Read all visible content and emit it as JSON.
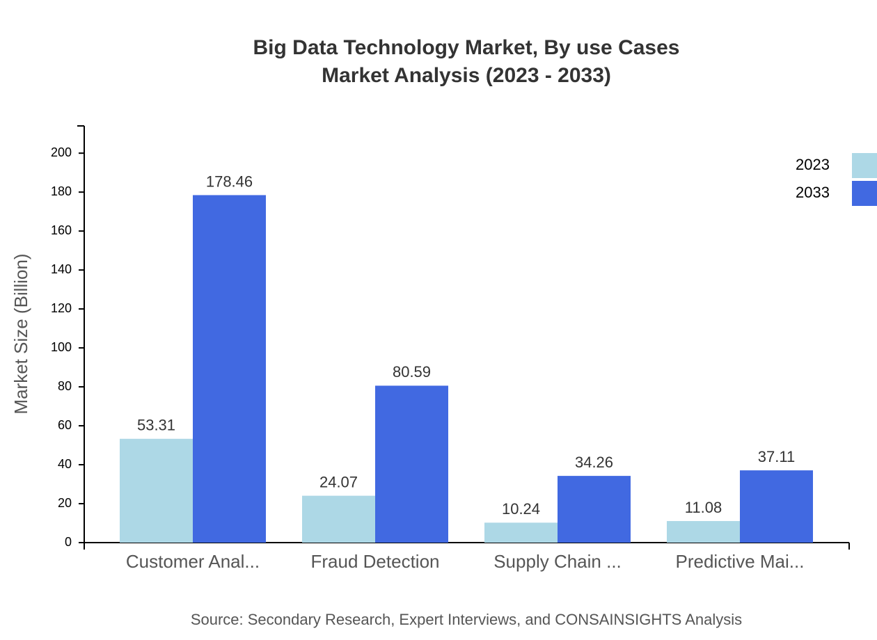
{
  "chart_data": {
    "type": "bar",
    "title": "Big Data Technology Market, By use Cases",
    "subtitle": "Market Analysis (2023 - 2033)",
    "y_label": "Market Size (Billion)",
    "source": "Source: Secondary Research, Expert Interviews, and CONSAINSIGHTS Analysis",
    "categories": [
      "Customer Anal...",
      "Fraud Detection",
      "Supply Chain ...",
      "Predictive Mai..."
    ],
    "series": [
      {
        "name": "2023",
        "color": "#add8e6",
        "values": [
          53.31,
          24.07,
          10.24,
          11.08
        ]
      },
      {
        "name": "2033",
        "color": "#4169e1",
        "values": [
          178.46,
          80.59,
          34.26,
          37.11
        ]
      }
    ],
    "ylim": [
      0,
      214
    ],
    "yticks": [
      0,
      20,
      40,
      60,
      80,
      100,
      120,
      140,
      160,
      180,
      200
    ],
    "legend": "top-right"
  }
}
